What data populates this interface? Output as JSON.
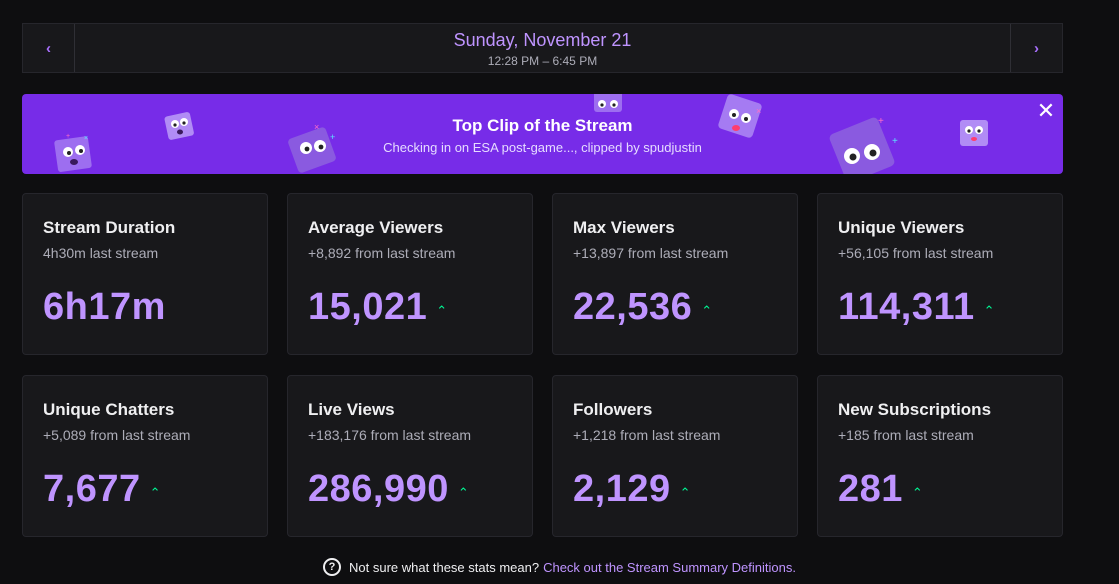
{
  "datebar": {
    "prev_icon": "chevron-left-icon",
    "date": "Sunday, November 21",
    "time_range": "12:28 PM – 6:45 PM",
    "next_icon": "chevron-right-icon"
  },
  "banner": {
    "title": "Top Clip of the Stream",
    "subtitle": "Checking in on ESA post-game..., clipped by spudjustin",
    "close_icon": "close-icon",
    "background": "#772ce8"
  },
  "stats": [
    {
      "title": "Stream Duration",
      "sub": "4h30m last stream",
      "value": "6h17m",
      "trend": ""
    },
    {
      "title": "Average Viewers",
      "sub": "+8,892 from last stream",
      "value": "15,021",
      "trend": "up"
    },
    {
      "title": "Max Viewers",
      "sub": "+13,897 from last stream",
      "value": "22,536",
      "trend": "up"
    },
    {
      "title": "Unique Viewers",
      "sub": "+56,105 from last stream",
      "value": "114,311",
      "trend": "up"
    },
    {
      "title": "Unique Chatters",
      "sub": "+5,089 from last stream",
      "value": "7,677",
      "trend": "up"
    },
    {
      "title": "Live Views",
      "sub": "+183,176 from last stream",
      "value": "286,990",
      "trend": "up"
    },
    {
      "title": "Followers",
      "sub": "+1,218 from last stream",
      "value": "2,129",
      "trend": "up"
    },
    {
      "title": "New Subscriptions",
      "sub": "+185 from last stream",
      "value": "281",
      "trend": "up"
    }
  ],
  "footer": {
    "question": "Not sure what these stats mean?",
    "link": "Check out the Stream Summary Definitions."
  },
  "colors": {
    "accent": "#bf94ff",
    "trend_up": "#00f593",
    "card_bg": "#18181b",
    "page_bg": "#0e0e10"
  }
}
